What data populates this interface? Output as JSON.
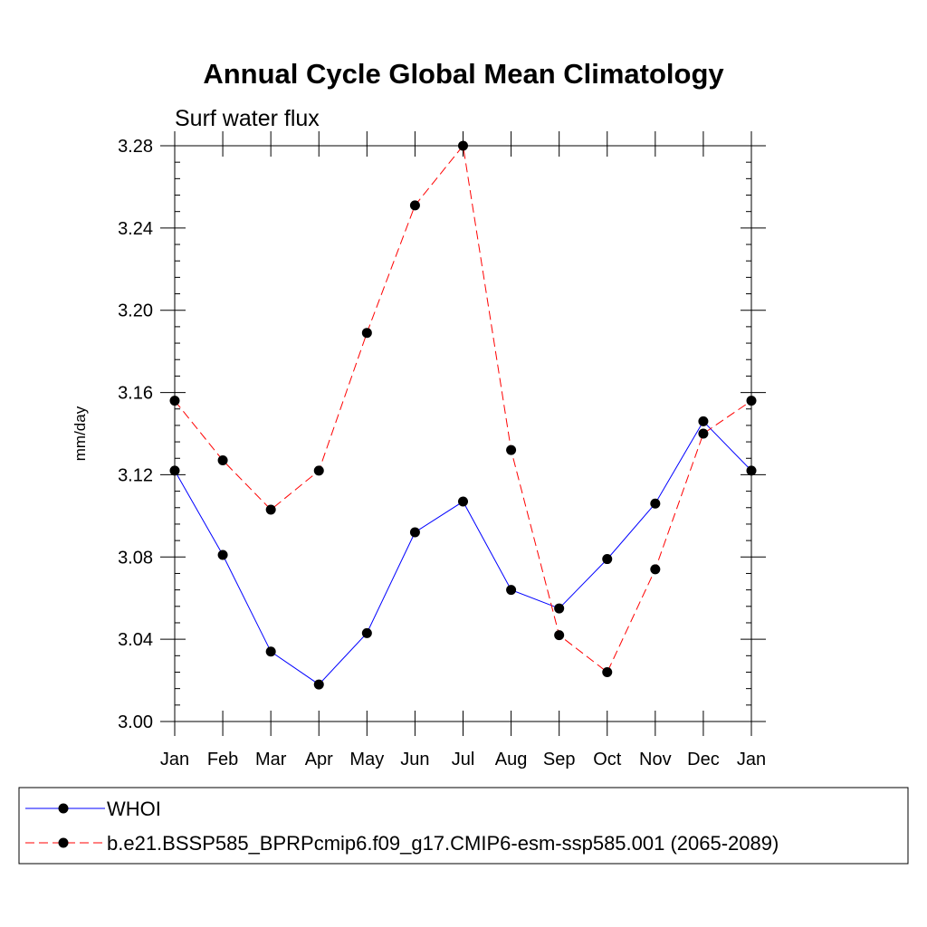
{
  "chart_data": {
    "type": "line",
    "title": "Annual Cycle Global Mean Climatology",
    "subtitle": "Surf water flux",
    "xlabel": "",
    "ylabel": "mm/day",
    "categories": [
      "Jan",
      "Feb",
      "Mar",
      "Apr",
      "May",
      "Jun",
      "Jul",
      "Aug",
      "Sep",
      "Oct",
      "Nov",
      "Dec",
      "Jan"
    ],
    "ylim": [
      3.0,
      3.28
    ],
    "yticks": [
      "3.00",
      "3.04",
      "3.08",
      "3.12",
      "3.16",
      "3.20",
      "3.24",
      "3.28"
    ],
    "ytick_values": [
      3.0,
      3.04,
      3.08,
      3.12,
      3.16,
      3.2,
      3.24,
      3.28
    ],
    "grid": false,
    "legend_position": "bottom",
    "series": [
      {
        "name": "WHOI",
        "color": "#0000ff",
        "line_style": "solid",
        "marker": "filled-circle",
        "values": [
          3.122,
          3.081,
          3.034,
          3.018,
          3.043,
          3.092,
          3.107,
          3.064,
          3.055,
          3.079,
          3.106,
          3.146,
          3.122
        ]
      },
      {
        "name": "b.e21.BSSP585_BPRPcmip6.f09_g17.CMIP6-esm-ssp585.001 (2065-2089)",
        "color": "#ff0000",
        "line_style": "dashed",
        "marker": "filled-circle",
        "values": [
          3.156,
          3.127,
          3.103,
          3.122,
          3.189,
          3.251,
          3.28,
          3.132,
          3.042,
          3.024,
          3.074,
          3.14,
          3.156
        ]
      }
    ]
  }
}
